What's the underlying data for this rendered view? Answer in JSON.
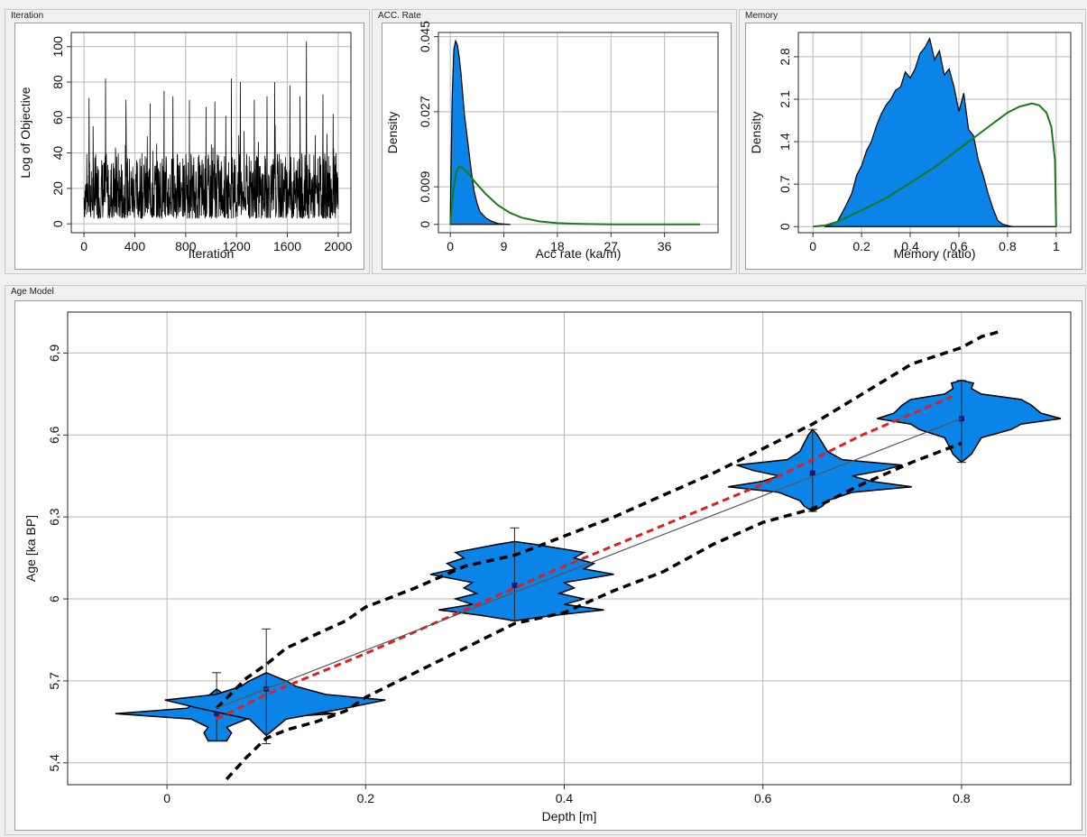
{
  "panels": {
    "iteration": {
      "title": "Iteration"
    },
    "acc_rate": {
      "title": "ACC. Rate"
    },
    "memory": {
      "title": "Memory"
    },
    "age_model": {
      "title": "Age Model"
    }
  },
  "chart_data": [
    {
      "id": "iteration",
      "type": "line",
      "title": "",
      "xlabel": "Iteration",
      "ylabel": "Log of Objective",
      "xlim": [
        -100,
        2100
      ],
      "ylim": [
        -5,
        108
      ],
      "xticks": [
        0,
        400,
        800,
        1200,
        1600,
        2000
      ],
      "yticks": [
        0,
        20,
        40,
        60,
        80,
        100
      ],
      "grid": true,
      "colors": {
        "line": "#000000"
      },
      "trace": {
        "n_iterations": 2000,
        "typical_range": [
          3,
          40
        ],
        "peaks": [
          [
            40,
            71
          ],
          [
            170,
            82
          ],
          [
            330,
            70
          ],
          [
            520,
            68
          ],
          [
            630,
            75
          ],
          [
            700,
            72
          ],
          [
            830,
            70
          ],
          [
            960,
            66
          ],
          [
            1030,
            69
          ],
          [
            1160,
            82
          ],
          [
            1230,
            80
          ],
          [
            1340,
            70
          ],
          [
            1440,
            72
          ],
          [
            1500,
            80
          ],
          [
            1620,
            78
          ],
          [
            1700,
            72
          ],
          [
            1750,
            103
          ],
          [
            1880,
            73
          ],
          [
            1960,
            62
          ]
        ]
      }
    },
    {
      "id": "acc_rate",
      "type": "area",
      "title": "",
      "xlabel": "Acc rate (ka/m)",
      "ylabel": "Density",
      "xlim": [
        -2,
        45
      ],
      "ylim": [
        -0.002,
        0.046
      ],
      "xticks": [
        0,
        9,
        18,
        27,
        36
      ],
      "yticks": [
        0,
        0.009,
        0.027,
        0.045
      ],
      "grid": true,
      "colors": {
        "histogram": "#0a84e6",
        "prior": "#1a7a1a"
      },
      "series": [
        {
          "kind": "histogram",
          "x": [
            0,
            0.3,
            0.6,
            0.9,
            1.2,
            1.5,
            1.8,
            2.1,
            2.4,
            3,
            3.5,
            4,
            4.5,
            5,
            6,
            7,
            8,
            10
          ],
          "y": [
            0.002,
            0.03,
            0.042,
            0.044,
            0.043,
            0.04,
            0.036,
            0.031,
            0.026,
            0.019,
            0.013,
            0.008,
            0.005,
            0.003,
            0.0015,
            0.0007,
            0.0002,
            0
          ]
        },
        {
          "kind": "prior",
          "x": [
            0,
            0.5,
            1,
            1.5,
            2,
            3,
            4,
            6,
            8,
            10,
            12,
            15,
            18,
            22,
            27,
            30,
            36,
            42
          ],
          "y": [
            0,
            0.008,
            0.0125,
            0.0138,
            0.0136,
            0.0122,
            0.0104,
            0.0072,
            0.0046,
            0.0028,
            0.0016,
            0.0007,
            0.0003,
            0.0001,
            2e-05,
            0,
            0,
            0
          ]
        }
      ]
    },
    {
      "id": "memory",
      "type": "area",
      "title": "",
      "xlabel": "Memory (ratio)",
      "ylabel": "Density",
      "xlim": [
        -0.06,
        1.06
      ],
      "ylim": [
        -0.1,
        3.2
      ],
      "xticks": [
        0,
        0.2,
        0.4,
        0.6,
        0.8,
        1
      ],
      "xtick_labels": [
        "0",
        "0.2",
        "0.4",
        "0.6",
        "0.8",
        "1"
      ],
      "yticks": [
        0,
        0.7,
        1.4,
        2.1,
        2.8
      ],
      "grid": true,
      "colors": {
        "histogram": "#0a84e6",
        "prior": "#1a7a1a"
      },
      "series": [
        {
          "kind": "histogram",
          "x": [
            0.05,
            0.1,
            0.13,
            0.16,
            0.18,
            0.2,
            0.22,
            0.24,
            0.26,
            0.28,
            0.3,
            0.32,
            0.34,
            0.36,
            0.38,
            0.4,
            0.42,
            0.44,
            0.46,
            0.48,
            0.5,
            0.52,
            0.54,
            0.56,
            0.58,
            0.6,
            0.62,
            0.64,
            0.66,
            0.68,
            0.7,
            0.72,
            0.74,
            0.76,
            0.78,
            0.8,
            0.82
          ],
          "y": [
            0,
            0.08,
            0.3,
            0.55,
            0.85,
            1.0,
            1.25,
            1.4,
            1.65,
            1.85,
            2.0,
            2.1,
            2.25,
            2.3,
            2.55,
            2.45,
            2.6,
            2.85,
            2.95,
            3.1,
            2.75,
            2.9,
            2.5,
            2.6,
            2.3,
            1.9,
            2.2,
            1.6,
            1.5,
            1.1,
            0.85,
            0.55,
            0.3,
            0.1,
            0.04,
            0.02,
            0
          ]
        },
        {
          "kind": "prior",
          "x": [
            0,
            0.05,
            0.1,
            0.2,
            0.3,
            0.4,
            0.5,
            0.6,
            0.7,
            0.8,
            0.85,
            0.9,
            0.93,
            0.96,
            0.98,
            0.995,
            1
          ],
          "y": [
            0,
            0.02,
            0.08,
            0.27,
            0.47,
            0.72,
            0.98,
            1.28,
            1.58,
            1.88,
            1.98,
            2.03,
            2.0,
            1.88,
            1.65,
            1.1,
            0
          ]
        }
      ]
    },
    {
      "id": "age_model",
      "type": "scatter",
      "title": "",
      "xlabel": "Depth [m]",
      "ylabel": "Age [ka BP]",
      "xlim": [
        -0.1,
        0.91
      ],
      "ylim": [
        5.32,
        7.05
      ],
      "xticks": [
        0,
        0.2,
        0.4,
        0.6,
        0.8
      ],
      "xtick_labels": [
        "0",
        "0.2",
        "0.4",
        "0.6",
        "0.8"
      ],
      "yticks": [
        5.4,
        5.7,
        6.0,
        6.3,
        6.6,
        6.9
      ],
      "ytick_labels": [
        "5,4",
        "5,7",
        "6",
        "6,3",
        "6,6",
        "6,9"
      ],
      "grid": true,
      "colors": {
        "violin": "#0a84e6",
        "mean": "#1a1a7a",
        "upper_bound": "#000000",
        "lower_bound": "#000000",
        "median": "#e02020",
        "regression": "#555555"
      },
      "dates": [
        {
          "depth": 0.05,
          "age": 5.58,
          "err_low": 5.48,
          "err_high": 5.73,
          "width": 0.12,
          "profile": [
            [
              5.48,
              0.01
            ],
            [
              5.51,
              0.015
            ],
            [
              5.53,
              0.01
            ],
            [
              5.56,
              0.03
            ],
            [
              5.58,
              0.12
            ],
            [
              5.6,
              0.035
            ],
            [
              5.63,
              0.02
            ],
            [
              5.65,
              0.008
            ],
            [
              5.67,
              0
            ]
          ]
        },
        {
          "depth": 0.1,
          "age": 5.67,
          "err_low": 5.47,
          "err_high": 5.89,
          "width": 0.12,
          "profile": [
            [
              5.5,
              0
            ],
            [
              5.56,
              0.02
            ],
            [
              5.6,
              0.08
            ],
            [
              5.63,
              0.12
            ],
            [
              5.65,
              0.06
            ],
            [
              5.68,
              0.03
            ],
            [
              5.7,
              0.02
            ],
            [
              5.73,
              0
            ]
          ]
        },
        {
          "depth": 0.35,
          "age": 6.05,
          "err_low": 5.92,
          "err_high": 6.26,
          "width": 0.1,
          "profile": [
            [
              5.92,
              0
            ],
            [
              5.94,
              0.04
            ],
            [
              5.96,
              0.09
            ],
            [
              5.98,
              0.05
            ],
            [
              6.0,
              0.07
            ],
            [
              6.02,
              0.045
            ],
            [
              6.04,
              0.06
            ],
            [
              6.06,
              0.05
            ],
            [
              6.09,
              0.1
            ],
            [
              6.11,
              0.07
            ],
            [
              6.13,
              0.08
            ],
            [
              6.15,
              0.06
            ],
            [
              6.17,
              0.07
            ],
            [
              6.2,
              0.02
            ],
            [
              6.21,
              0
            ]
          ]
        },
        {
          "depth": 0.65,
          "age": 6.46,
          "err_low": 6.32,
          "err_high": 6.62,
          "width": 0.1,
          "profile": [
            [
              6.32,
              0
            ],
            [
              6.34,
              0.01
            ],
            [
              6.36,
              0.015
            ],
            [
              6.39,
              0.04
            ],
            [
              6.41,
              0.1
            ],
            [
              6.43,
              0.06
            ],
            [
              6.45,
              0.04
            ],
            [
              6.47,
              0.07
            ],
            [
              6.49,
              0.09
            ],
            [
              6.51,
              0.03
            ],
            [
              6.54,
              0.015
            ],
            [
              6.57,
              0.01
            ],
            [
              6.6,
              0.005
            ],
            [
              6.62,
              0
            ]
          ]
        },
        {
          "depth": 0.8,
          "age": 6.66,
          "err_low": 6.5,
          "err_high": 6.8,
          "width": 0.1,
          "profile": [
            [
              6.5,
              0
            ],
            [
              6.53,
              0.01
            ],
            [
              6.56,
              0.015
            ],
            [
              6.59,
              0.02
            ],
            [
              6.62,
              0.05
            ],
            [
              6.64,
              0.06
            ],
            [
              6.66,
              0.1
            ],
            [
              6.68,
              0.08
            ],
            [
              6.71,
              0.07
            ],
            [
              6.73,
              0.06
            ],
            [
              6.75,
              0.02
            ],
            [
              6.77,
              0.01
            ],
            [
              6.79,
              0.012
            ],
            [
              6.8,
              0
            ]
          ]
        }
      ],
      "series": [
        {
          "kind": "upper_bound",
          "x": [
            0.05,
            0.08,
            0.1,
            0.12,
            0.15,
            0.18,
            0.2,
            0.25,
            0.3,
            0.35,
            0.4,
            0.45,
            0.5,
            0.55,
            0.6,
            0.65,
            0.7,
            0.75,
            0.8,
            0.82,
            0.84
          ],
          "y": [
            5.6,
            5.71,
            5.76,
            5.82,
            5.87,
            5.92,
            5.97,
            6.04,
            6.12,
            6.16,
            6.23,
            6.3,
            6.38,
            6.46,
            6.55,
            6.64,
            6.75,
            6.86,
            6.92,
            6.96,
            6.98
          ]
        },
        {
          "kind": "lower_bound",
          "x": [
            0.06,
            0.08,
            0.1,
            0.12,
            0.15,
            0.18,
            0.2,
            0.25,
            0.3,
            0.35,
            0.4,
            0.45,
            0.5,
            0.55,
            0.6,
            0.65,
            0.7,
            0.75,
            0.8
          ],
          "y": [
            5.34,
            5.42,
            5.49,
            5.52,
            5.55,
            5.59,
            5.64,
            5.73,
            5.82,
            5.91,
            5.95,
            6.03,
            6.1,
            6.2,
            6.28,
            6.33,
            6.42,
            6.5,
            6.57
          ]
        },
        {
          "kind": "median",
          "x": [
            0.05,
            0.1,
            0.2,
            0.3,
            0.4,
            0.5,
            0.6,
            0.7,
            0.79
          ],
          "y": [
            5.56,
            5.65,
            5.8,
            5.96,
            6.12,
            6.27,
            6.42,
            6.6,
            6.74
          ]
        },
        {
          "kind": "regression",
          "x": [
            0.05,
            0.8
          ],
          "y": [
            5.6,
            6.66
          ]
        }
      ]
    }
  ]
}
